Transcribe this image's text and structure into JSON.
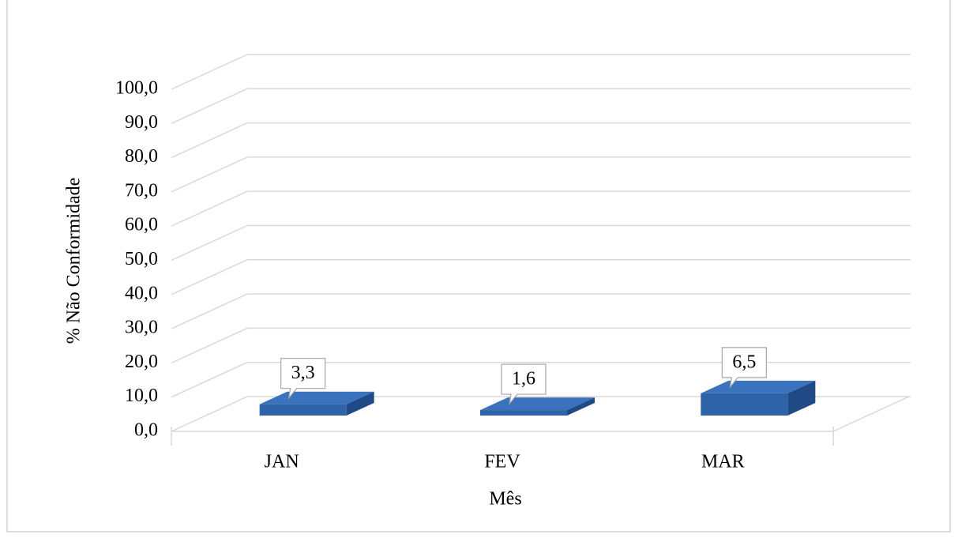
{
  "chart_data": {
    "type": "bar3d",
    "categories": [
      "JAN",
      "FEV",
      "MAR"
    ],
    "values": [
      3.3,
      1.6,
      6.5
    ],
    "value_labels": [
      "3,3",
      "1,6",
      "6,5"
    ],
    "color": "#2e63a8",
    "xlabel": "Mês",
    "ylabel": "% Não Conformidade",
    "ylim": [
      0,
      100
    ],
    "yticks": [
      {
        "value": 0,
        "label": "0,0"
      },
      {
        "value": 10,
        "label": "10,0"
      },
      {
        "value": 20,
        "label": "20,0"
      },
      {
        "value": 30,
        "label": "30,0"
      },
      {
        "value": 40,
        "label": "40,0"
      },
      {
        "value": 50,
        "label": "50,0"
      },
      {
        "value": 60,
        "label": "60,0"
      },
      {
        "value": 70,
        "label": "70,0"
      },
      {
        "value": 80,
        "label": "80,0"
      },
      {
        "value": 90,
        "label": "90,0"
      },
      {
        "value": 100,
        "label": "100,0"
      }
    ],
    "grid": true
  }
}
